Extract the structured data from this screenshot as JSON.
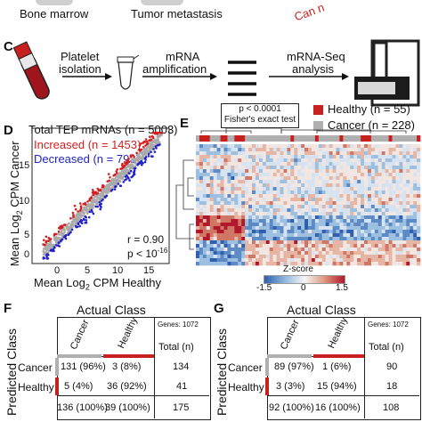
{
  "top": {
    "label_left": "Bone marrow",
    "label_mid": "Tumor metastasis",
    "label_right_fragment": "Can n"
  },
  "panel_c": {
    "letter": "C",
    "step1": [
      "Platelet",
      "isolation"
    ],
    "step2": [
      "mRNA",
      "amplification"
    ],
    "step3": [
      "mRNA-Seq",
      "analysis"
    ]
  },
  "panel_d": {
    "letter": "D",
    "title": "Total TEP mRNAs (n = 5003)",
    "increased": "Increased (n = 1453)",
    "decreased": "Decreased (n = 793)",
    "r": "r = 0.90",
    "p": "p < 10",
    "p_exp": "-16",
    "ylabel_pre": "Mean Log",
    "ylabel_sub": "2",
    "ylabel_post": " CPM Cancer",
    "xlabel_pre": "Mean Log",
    "xlabel_sub": "2",
    "xlabel_post": " CPM Healthy",
    "xticks": [
      "0",
      "5",
      "10",
      "15"
    ],
    "yticks": [
      "15",
      "10",
      "5",
      "0"
    ],
    "colors": {
      "increased": "#d42020",
      "decreased": "#2222c8",
      "neutral": "#aaaaaa"
    }
  },
  "panel_e": {
    "letter": "E",
    "legend_healthy": "Healthy (n = 55)",
    "legend_cancer": "Cancer (n = 228)",
    "pbox": [
      "p < 0.0001",
      "Fisher's exact test"
    ],
    "zscore_title": "Z-score",
    "zscore_ticks": [
      "-1.5",
      "0",
      "1.5"
    ],
    "colors": {
      "healthy": "#c8201e",
      "cancer": "#b0b0b0",
      "low": "#2f5fae",
      "high": "#b2182b"
    }
  },
  "panel_f": {
    "letter": "F",
    "actual_class": "Actual Class",
    "predicted_class": "Predicted Class",
    "genes": "Genes: 1072",
    "col_cancer": "Cancer",
    "col_healthy": "Healthy",
    "row_cancer": "Cancer",
    "row_healthy": "Healthy",
    "cells": [
      "131 (96%)",
      "3 (8%)",
      "5 (4%)",
      "36 (92%)"
    ],
    "totals_row": [
      "136 (100%)",
      "39 (100%)"
    ],
    "total_header": "Total (n)",
    "row_totals": [
      "134",
      "41"
    ],
    "grand_total": "175"
  },
  "panel_g": {
    "letter": "G",
    "actual_class": "Actual Class",
    "predicted_class": "Predicted Class",
    "genes": "Genes: 1072",
    "col_cancer": "Cancer",
    "col_healthy": "Healthy",
    "row_cancer": "Cancer",
    "row_healthy": "Healthy",
    "cells": [
      "89 (97%)",
      "1 (6%)",
      "3 (3%)",
      "15 (94%)"
    ],
    "totals_row": [
      "92 (100%)",
      "16 (100%)"
    ],
    "total_header": "Total (n)",
    "row_totals": [
      "90",
      "18"
    ],
    "grand_total": "108"
  }
}
